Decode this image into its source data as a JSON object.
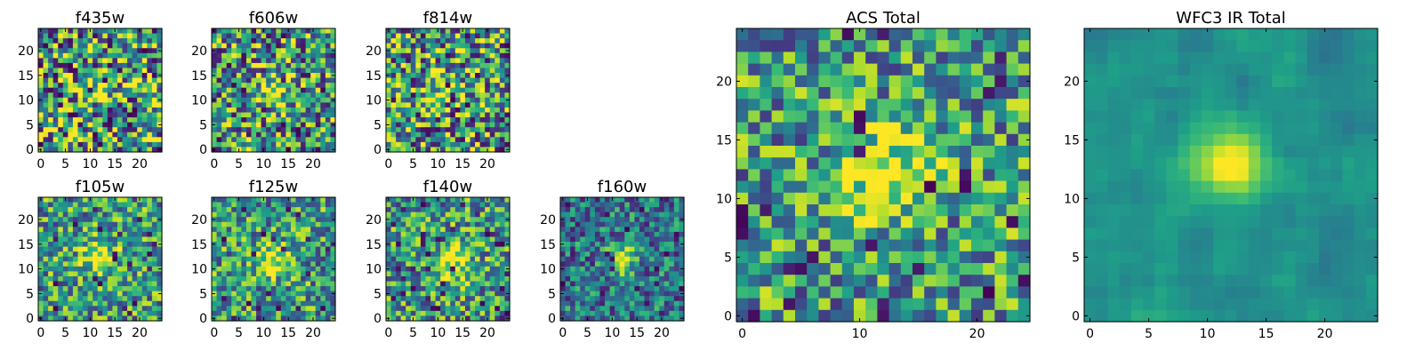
{
  "chart_data": [
    {
      "type": "heatmap",
      "title": "f435w",
      "xticks": [
        0,
        5,
        10,
        15,
        20
      ],
      "yticks": [
        0,
        5,
        10,
        15,
        20
      ],
      "xlim": [
        -0.5,
        24.5
      ],
      "ylim": [
        -0.5,
        24.5
      ],
      "grid": [
        25,
        25
      ],
      "noise": 0.85,
      "blob_amp": 0.28,
      "blob_center": [
        12,
        12
      ],
      "blob_sigma": 2.5,
      "dark_fraction": 0.06,
      "colormap": "viridis",
      "seed": 11
    },
    {
      "type": "heatmap",
      "title": "f606w",
      "xticks": [
        0,
        5,
        10,
        15,
        20
      ],
      "yticks": [
        0,
        5,
        10,
        15,
        20
      ],
      "xlim": [
        -0.5,
        24.5
      ],
      "ylim": [
        -0.5,
        24.5
      ],
      "grid": [
        25,
        25
      ],
      "noise": 0.75,
      "blob_amp": 0.4,
      "blob_center": [
        12,
        12
      ],
      "blob_sigma": 2.3,
      "dark_fraction": 0.06,
      "colormap": "viridis",
      "seed": 23
    },
    {
      "type": "heatmap",
      "title": "f814w",
      "xticks": [
        0,
        5,
        10,
        15,
        20
      ],
      "yticks": [
        0,
        5,
        10,
        15,
        20
      ],
      "xlim": [
        -0.5,
        24.5
      ],
      "ylim": [
        -0.5,
        24.5
      ],
      "grid": [
        25,
        25
      ],
      "noise": 0.8,
      "blob_amp": 0.3,
      "blob_center": [
        12,
        12
      ],
      "blob_sigma": 2.5,
      "dark_fraction": 0.05,
      "colormap": "viridis",
      "seed": 37
    },
    {
      "type": "heatmap",
      "title": "f105w",
      "xticks": [
        0,
        5,
        10,
        15,
        20
      ],
      "yticks": [
        0,
        5,
        10,
        15,
        20
      ],
      "xlim": [
        -0.5,
        24.5
      ],
      "ylim": [
        -0.5,
        24.5
      ],
      "grid": [
        25,
        25
      ],
      "noise": 0.6,
      "blob_amp": 0.45,
      "blob_center": [
        12,
        12
      ],
      "blob_sigma": 2.4,
      "dark_fraction": 0.03,
      "colormap": "viridis",
      "seed": 41
    },
    {
      "type": "heatmap",
      "title": "f125w",
      "xticks": [
        0,
        5,
        10,
        15,
        20
      ],
      "yticks": [
        0,
        5,
        10,
        15,
        20
      ],
      "xlim": [
        -0.5,
        24.5
      ],
      "ylim": [
        -0.5,
        24.5
      ],
      "grid": [
        25,
        25
      ],
      "noise": 0.6,
      "blob_amp": 0.45,
      "blob_center": [
        12,
        12
      ],
      "blob_sigma": 2.3,
      "dark_fraction": 0.04,
      "colormap": "viridis",
      "seed": 53
    },
    {
      "type": "heatmap",
      "title": "f140w",
      "xticks": [
        0,
        5,
        10,
        15,
        20
      ],
      "yticks": [
        0,
        5,
        10,
        15,
        20
      ],
      "xlim": [
        -0.5,
        24.5
      ],
      "ylim": [
        -0.5,
        24.5
      ],
      "grid": [
        25,
        25
      ],
      "noise": 0.6,
      "blob_amp": 0.45,
      "blob_center": [
        13,
        11
      ],
      "blob_sigma": 2.8,
      "dark_fraction": 0.04,
      "colormap": "viridis",
      "seed": 67
    },
    {
      "type": "heatmap",
      "title": "f160w",
      "xticks": [
        0,
        5,
        10,
        15,
        20
      ],
      "yticks": [
        0,
        5,
        10,
        15,
        20
      ],
      "xlim": [
        -0.5,
        24.5
      ],
      "ylim": [
        -0.5,
        24.5
      ],
      "grid": [
        25,
        25
      ],
      "noise": 0.5,
      "blob_amp": 0.6,
      "blob_center": [
        12,
        12
      ],
      "blob_sigma": 2.0,
      "dark_fraction": 0.05,
      "base_bias": -0.15,
      "colormap": "viridis",
      "seed": 79
    },
    {
      "type": "heatmap",
      "title": "ACS Total",
      "xticks": [
        0,
        10,
        20
      ],
      "yticks": [
        0,
        5,
        10,
        15,
        20
      ],
      "xlim": [
        -0.5,
        24.5
      ],
      "ylim": [
        -0.5,
        24.5
      ],
      "grid": [
        25,
        25
      ],
      "noise": 0.6,
      "blob_amp": 0.5,
      "blob_center": [
        12,
        12
      ],
      "blob_sigma": 2.6,
      "dark_fraction": 0.05,
      "colormap": "viridis",
      "seed": 97
    },
    {
      "type": "heatmap",
      "title": "WFC3 IR Total",
      "xticks": [
        0,
        5,
        10,
        15,
        20
      ],
      "yticks": [
        0,
        5,
        10,
        15,
        20
      ],
      "xlim": [
        -0.5,
        24.5
      ],
      "ylim": [
        -0.5,
        24.5
      ],
      "grid": [
        25,
        25
      ],
      "noise": 0.3,
      "blob_amp": 0.55,
      "blob_center": [
        12,
        13
      ],
      "blob_sigma": 2.2,
      "dark_fraction": 0.0,
      "smooth": true,
      "base_bias": -0.05,
      "colormap": "viridis",
      "seed": 131
    }
  ]
}
